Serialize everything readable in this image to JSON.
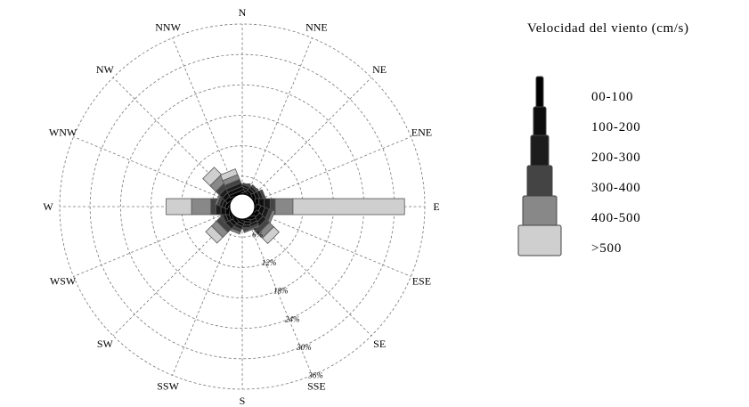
{
  "chart_data": {
    "type": "wind-rose",
    "legend_title": "Velocidad del viento (cm/s)",
    "directions": [
      "N",
      "NNE",
      "NE",
      "ENE",
      "E",
      "ESE",
      "SE",
      "SSE",
      "S",
      "SSW",
      "SW",
      "WSW",
      "W",
      "WNW",
      "NW",
      "NNW"
    ],
    "ring_labels": [
      "6%",
      "12%",
      "18%",
      "24%",
      "30%",
      "36%"
    ],
    "rings_percent": [
      6,
      12,
      18,
      24,
      30,
      36
    ],
    "calm_center_percent": 2.5,
    "bins": [
      {
        "label": "00-100",
        "color": "#000000"
      },
      {
        "label": "100-200",
        "color": "#0d0d0d"
      },
      {
        "label": "200-300",
        "color": "#1c1c1c"
      },
      {
        "label": "300-400",
        "color": "#444444"
      },
      {
        "label": "400-500",
        "color": "#888888"
      },
      {
        "label": ">500",
        "color": "#cfcfcf"
      }
    ],
    "series": [
      {
        "direction": "N",
        "values": [
          0.6,
          0.6,
          0.5,
          0.3,
          0.0,
          0.0
        ]
      },
      {
        "direction": "NNE",
        "values": [
          0.5,
          0.6,
          0.5,
          0.3,
          0.0,
          0.0
        ]
      },
      {
        "direction": "NE",
        "values": [
          0.5,
          0.6,
          0.5,
          0.4,
          0.0,
          0.0
        ]
      },
      {
        "direction": "ENE",
        "values": [
          0.6,
          0.7,
          0.6,
          0.5,
          0.0,
          0.0
        ]
      },
      {
        "direction": "E",
        "values": [
          0.8,
          1.0,
          1.2,
          1.0,
          3.5,
          22.0
        ]
      },
      {
        "direction": "ESE",
        "values": [
          0.8,
          0.9,
          0.9,
          0.7,
          0.5,
          0.0
        ]
      },
      {
        "direction": "SE",
        "values": [
          0.8,
          0.9,
          0.9,
          0.9,
          1.2,
          1.5
        ]
      },
      {
        "direction": "SSE",
        "values": [
          0.6,
          0.6,
          0.6,
          0.4,
          0.2,
          0.0
        ]
      },
      {
        "direction": "S",
        "values": [
          0.5,
          0.6,
          0.5,
          0.3,
          0.0,
          0.0
        ]
      },
      {
        "direction": "SSW",
        "values": [
          0.5,
          0.6,
          0.6,
          0.6,
          0.4,
          0.0
        ]
      },
      {
        "direction": "SW",
        "values": [
          0.6,
          0.7,
          0.8,
          1.0,
          1.4,
          1.6
        ]
      },
      {
        "direction": "WSW",
        "values": [
          0.5,
          0.6,
          0.6,
          0.4,
          0.0,
          0.0
        ]
      },
      {
        "direction": "W",
        "values": [
          0.8,
          0.9,
          1.0,
          1.0,
          3.8,
          5.0
        ]
      },
      {
        "direction": "WNW",
        "values": [
          0.6,
          0.6,
          0.6,
          0.5,
          0.3,
          0.0
        ]
      },
      {
        "direction": "NW",
        "values": [
          0.7,
          0.8,
          0.8,
          1.0,
          1.6,
          2.0
        ]
      },
      {
        "direction": "NNW",
        "values": [
          0.5,
          0.7,
          0.7,
          0.8,
          1.0,
          1.2
        ]
      }
    ],
    "grid": true,
    "legend_position": "right"
  }
}
